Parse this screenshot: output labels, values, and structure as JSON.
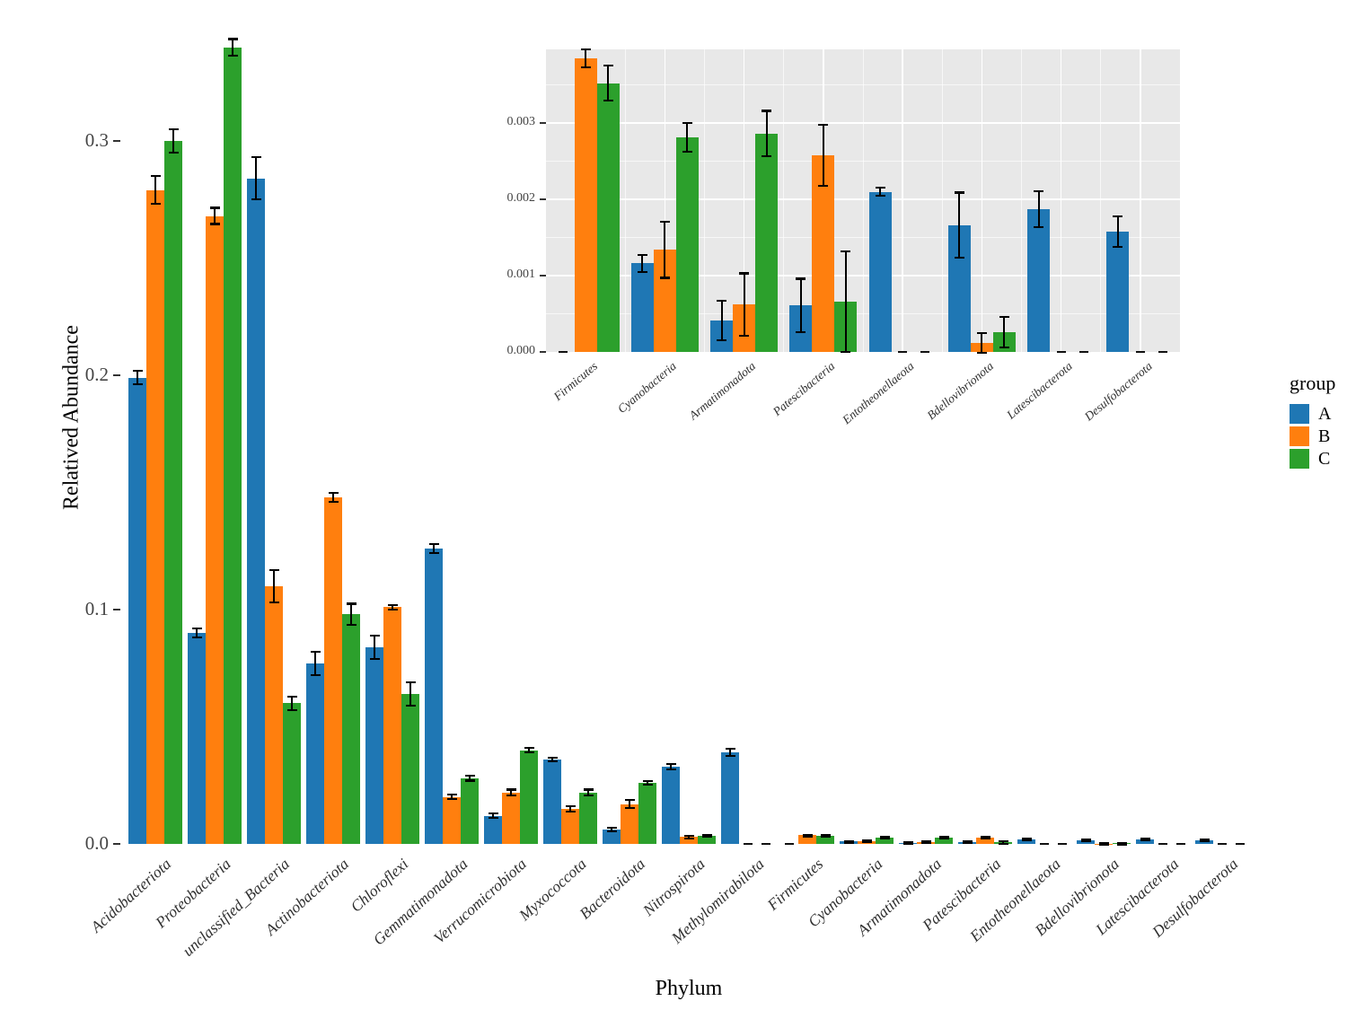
{
  "legend": {
    "title": "group",
    "items": [
      {
        "label": "A",
        "color": "#1f77b4"
      },
      {
        "label": "B",
        "color": "#ff7f0e"
      },
      {
        "label": "C",
        "color": "#2ca02c"
      }
    ]
  },
  "chart_data": [
    {
      "id": "main",
      "type": "bar",
      "title": "",
      "xlabel": "Phylum",
      "ylabel": "Relatived Abundance",
      "ylim": [
        0,
        0.35
      ],
      "yticks": [
        "0.0",
        "0.1",
        "0.2",
        "0.3"
      ],
      "ytick_values": [
        0.0,
        0.1,
        0.2,
        0.3
      ],
      "grid": false,
      "legend_position": "right",
      "categories": [
        "Acidobacteriota",
        "Proteobacteria",
        "unclassified_Bacteria",
        "Actinobacteriota",
        "Chloroflexi",
        "Gemmatimonadota",
        "Verrucomicrobiota",
        "Myxococcota",
        "Bacteroidota",
        "Nitrospirota",
        "Methylomirabilota",
        "Firmicutes",
        "Cyanobacteria",
        "Armatimonadota",
        "Patescibacteria",
        "Entotheonellaeota",
        "Bdellovibrionota",
        "Latescibacterota",
        "Desulfobacterota"
      ],
      "series": [
        {
          "name": "A",
          "color": "#1f77b4",
          "values": [
            0.199,
            0.09,
            0.284,
            0.077,
            0.084,
            0.126,
            0.012,
            0.036,
            0.006,
            0.033,
            0.039,
            0,
            0.00116,
            0.00041,
            0.00061,
            0.0021,
            0.00166,
            0.00187,
            0.00158
          ],
          "errors": [
            0.003,
            0.002,
            0.009,
            0.005,
            0.005,
            0.002,
            0.001,
            0.0008,
            0.0008,
            0.0012,
            0.0015,
            0,
            0.00011,
            0.00026,
            0.00035,
            5e-05,
            0.00043,
            0.00024,
            0.0002
          ]
        },
        {
          "name": "B",
          "color": "#ff7f0e",
          "values": [
            0.279,
            0.268,
            0.11,
            0.148,
            0.101,
            0.02,
            0.022,
            0.015,
            0.017,
            0.003,
            0,
            0.00385,
            0.00134,
            0.00062,
            0.00258,
            0,
            0.00012,
            0,
            0
          ],
          "errors": [
            0.006,
            0.0035,
            0.007,
            0.002,
            0.001,
            0.001,
            0.0012,
            0.0012,
            0.0018,
            0.0006,
            0,
            0.00012,
            0.00037,
            0.00041,
            0.0004,
            0,
            0.00013,
            0,
            0
          ]
        },
        {
          "name": "C",
          "color": "#2ca02c",
          "values": [
            0.3,
            0.34,
            0.06,
            0.098,
            0.064,
            0.028,
            0.04,
            0.022,
            0.026,
            0.0035,
            0,
            0.00352,
            0.00281,
            0.00286,
            0.00066,
            0,
            0.00026,
            0,
            0
          ],
          "errors": [
            0.005,
            0.0035,
            0.003,
            0.0045,
            0.005,
            0.001,
            0.001,
            0.0012,
            0.0008,
            0.0005,
            0,
            0.00023,
            0.00019,
            0.0003,
            0.00066,
            0,
            0.0002,
            0,
            0
          ]
        }
      ]
    },
    {
      "id": "inset",
      "type": "bar",
      "title": "",
      "xlabel": "",
      "ylabel": "",
      "ylim": [
        0,
        0.00396
      ],
      "yticks": [
        "0.000",
        "0.001",
        "0.002",
        "0.003"
      ],
      "ytick_values": [
        0.0,
        0.001,
        0.002,
        0.003
      ],
      "grid": true,
      "panel_background": "#e8e8e8",
      "categories": [
        "Firmicutes",
        "Cyanobacteria",
        "Armatimonadota",
        "Patescibacteria",
        "Entotheonellaeota",
        "Bdellovibrionota",
        "Latescibacterota",
        "Desulfobacterota"
      ],
      "series": [
        {
          "name": "A",
          "color": "#1f77b4",
          "values": [
            0,
            0.00116,
            0.00041,
            0.00061,
            0.0021,
            0.00166,
            0.00187,
            0.00158
          ],
          "errors": [
            0,
            0.00011,
            0.00026,
            0.00035,
            5e-05,
            0.00043,
            0.00024,
            0.0002
          ]
        },
        {
          "name": "B",
          "color": "#ff7f0e",
          "values": [
            0.00385,
            0.00134,
            0.00062,
            0.00258,
            0,
            0.00012,
            0,
            0
          ],
          "errors": [
            0.00012,
            0.00037,
            0.00041,
            0.0004,
            0,
            0.00013,
            0,
            0
          ]
        },
        {
          "name": "C",
          "color": "#2ca02c",
          "values": [
            0.00352,
            0.00281,
            0.00286,
            0.00066,
            0,
            0.00026,
            0,
            0
          ],
          "errors": [
            0.00023,
            0.00019,
            0.0003,
            0.00066,
            0,
            0.0002,
            0,
            0
          ]
        }
      ]
    }
  ]
}
